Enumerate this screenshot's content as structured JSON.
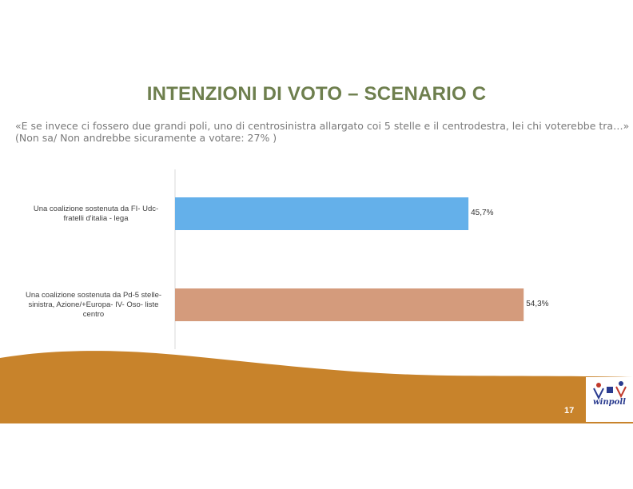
{
  "slide": {
    "title": "INTENZIONI DI VOTO – SCENARIO C",
    "question": "«E se invece ci fossero due grandi poli, uno di centrosinistra allargato coi 5 stelle e il centrodestra, lei chi voterebbe tra…» (Non sa/ Non andrebbe sicuramente a votare: 27% )",
    "page_number": "17",
    "logo_text": "winpoll"
  },
  "colors": {
    "title": "#6e7f4e",
    "bar_1": "#64b0ea",
    "bar_2": "#d49b7c",
    "footer": "#c8832b"
  },
  "chart_data": {
    "type": "bar",
    "orientation": "horizontal",
    "categories": [
      "Una coalizione sostenuta da FI- Udc- fratelli d'italia - lega",
      "Una coalizione sostenuta da Pd-5 stelle- sinistra, Azione/+Europa- IV- Oso- liste centro"
    ],
    "values": [
      45.7,
      54.3
    ],
    "value_labels": [
      "45,7%",
      "54,3%"
    ],
    "xlim": [
      0,
      60
    ],
    "grid": false,
    "legend": "none"
  }
}
